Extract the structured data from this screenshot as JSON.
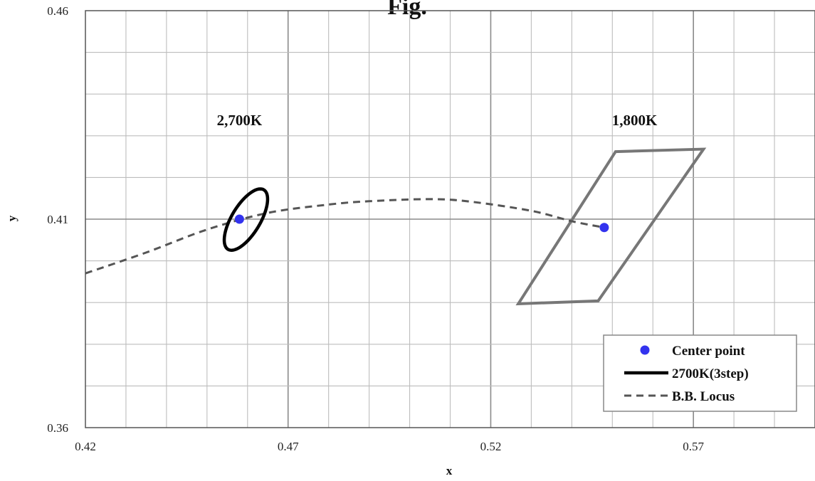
{
  "chart_data": {
    "type": "scatter",
    "title": "Fig.",
    "xlabel": "x",
    "ylabel": "y",
    "xlim": [
      0.42,
      0.6
    ],
    "ylim": [
      0.36,
      0.46
    ],
    "x_ticks": [
      0.42,
      0.47,
      0.52,
      0.57
    ],
    "x_tick_labels": [
      "0.42",
      "0.47",
      "0.52",
      "0.57"
    ],
    "y_ticks": [
      0.36,
      0.41,
      0.46
    ],
    "y_tick_labels": [
      "0.36",
      "0.41",
      "0.46"
    ],
    "grid": true,
    "legend_position": "bottom-right",
    "series": [
      {
        "name": "Center point",
        "kind": "points",
        "color": "#3333ee",
        "points": [
          [
            0.458,
            0.41
          ],
          [
            0.548,
            0.408
          ]
        ]
      },
      {
        "name": "2700K(3step)",
        "kind": "ellipse",
        "color": "#000000",
        "center": [
          0.4596,
          0.4099
        ],
        "semi_major": 0.0084,
        "semi_minor": 0.0035,
        "rotation_deg": 58
      },
      {
        "name": "B.B. Locus",
        "kind": "line",
        "color": "#555555",
        "points": [
          [
            0.42,
            0.397
          ],
          [
            0.435,
            0.402
          ],
          [
            0.45,
            0.4075
          ],
          [
            0.465,
            0.4115
          ],
          [
            0.48,
            0.4135
          ],
          [
            0.49,
            0.4143
          ],
          [
            0.505,
            0.4148
          ],
          [
            0.515,
            0.4142
          ],
          [
            0.53,
            0.412
          ],
          [
            0.54,
            0.4095
          ],
          [
            0.548,
            0.408
          ]
        ]
      }
    ],
    "quadrangles": [
      {
        "label": "1,800K",
        "color": "#777777",
        "points": [
          [
            0.5508,
            0.4262
          ],
          [
            0.5725,
            0.4268
          ],
          [
            0.5465,
            0.3904
          ],
          [
            0.5268,
            0.3897
          ]
        ]
      }
    ],
    "annotations": [
      {
        "text": "2,700K",
        "x": 0.458,
        "y": 0.4325
      },
      {
        "text": "1,800K",
        "x": 0.5555,
        "y": 0.4325
      }
    ]
  }
}
